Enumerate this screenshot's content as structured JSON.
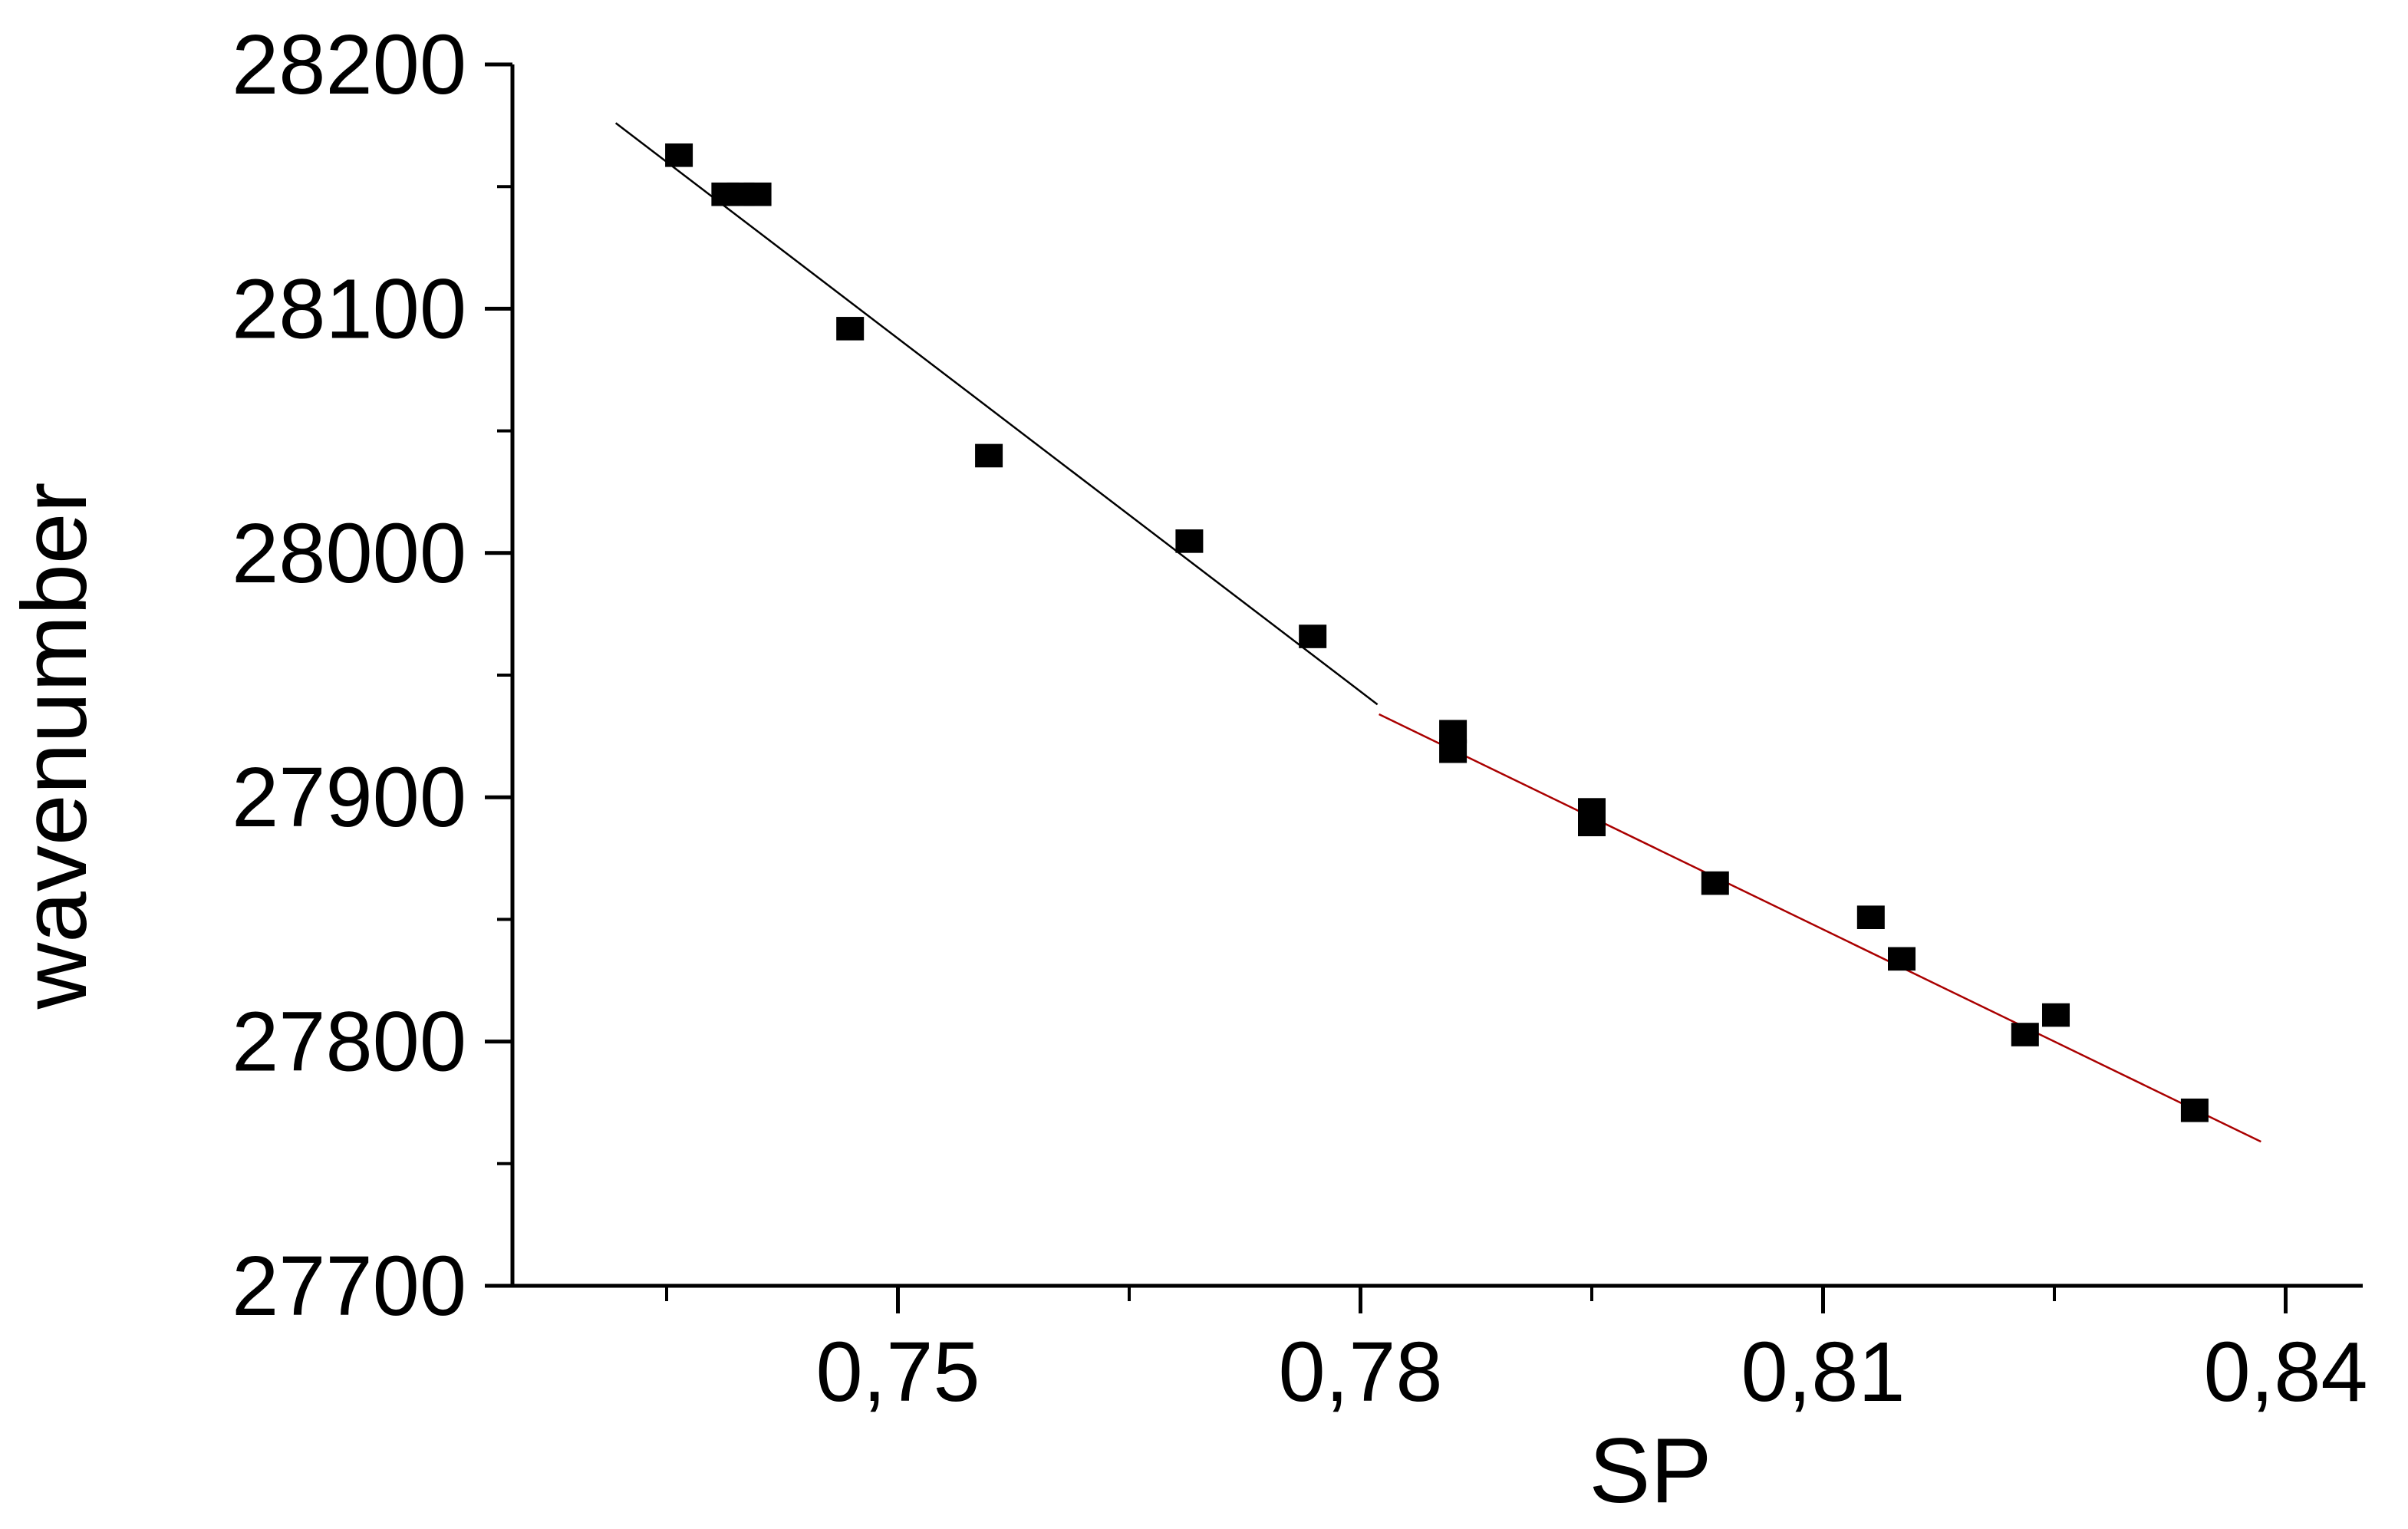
{
  "chart_data": {
    "type": "scatter",
    "title": "",
    "xlabel": "SP",
    "ylabel": "wavenumber",
    "xlim": [
      0.725,
      0.845
    ],
    "ylim": [
      27700,
      28200
    ],
    "x_ticks": [
      0.75,
      0.78,
      0.81,
      0.84
    ],
    "x_tick_labels": [
      "0,75",
      "0,78",
      "0,81",
      "0,84"
    ],
    "x_minor_ticks": [
      0.735,
      0.765,
      0.795,
      0.825
    ],
    "y_ticks": [
      27700,
      27800,
      27900,
      28000,
      28100,
      28200
    ],
    "y_tick_labels": [
      "27700",
      "27800",
      "27900",
      "28000",
      "28100",
      "28200"
    ],
    "y_minor_ticks": [
      27750,
      27850,
      27950,
      28050,
      28150
    ],
    "grid": false,
    "points": [
      {
        "x": 0.7358,
        "y": 28162
      },
      {
        "x": 0.7388,
        "y": 28146
      },
      {
        "x": 0.7398,
        "y": 28146
      },
      {
        "x": 0.7409,
        "y": 28146
      },
      {
        "x": 0.7469,
        "y": 28091
      },
      {
        "x": 0.7559,
        "y": 28039
      },
      {
        "x": 0.7689,
        "y": 28004
      },
      {
        "x": 0.7769,
        "y": 27965
      },
      {
        "x": 0.786,
        "y": 27926
      },
      {
        "x": 0.786,
        "y": 27918
      },
      {
        "x": 0.795,
        "y": 27894
      },
      {
        "x": 0.795,
        "y": 27888
      },
      {
        "x": 0.803,
        "y": 27864
      },
      {
        "x": 0.8131,
        "y": 27850
      },
      {
        "x": 0.8151,
        "y": 27833
      },
      {
        "x": 0.8231,
        "y": 27802
      },
      {
        "x": 0.8251,
        "y": 27810
      },
      {
        "x": 0.8341,
        "y": 27771
      }
    ],
    "fit_lines": [
      {
        "x": [
          0.7317,
          0.7811
        ],
        "y": [
          28176,
          27938
        ],
        "color": "#000000"
      },
      {
        "x": [
          0.7812,
          0.8384
        ],
        "y": [
          27934,
          27759
        ],
        "color": "#aa0000"
      }
    ],
    "marker_color": "#000000"
  }
}
